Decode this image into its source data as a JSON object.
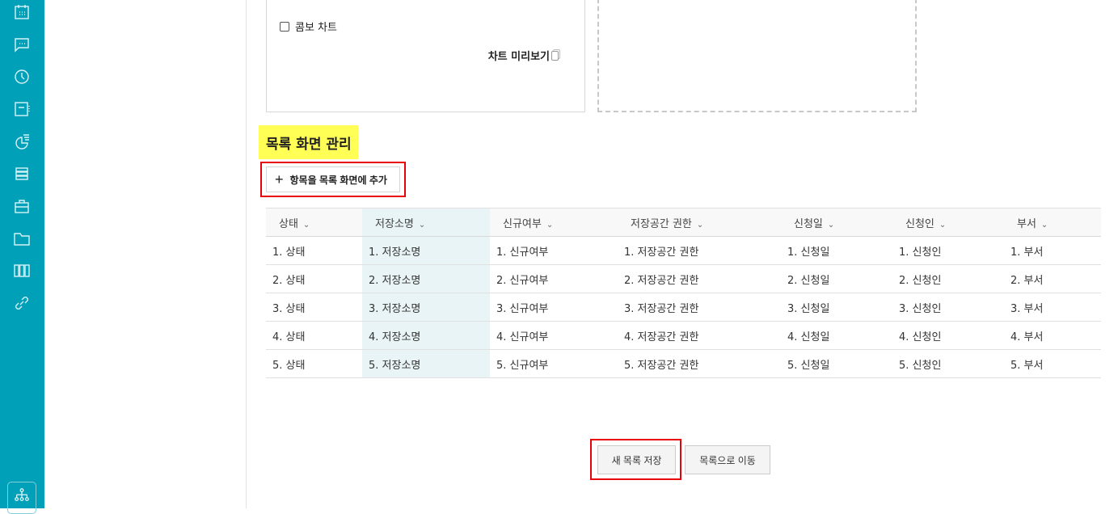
{
  "sidebar": {
    "icons": [
      "calendar-icon",
      "chat-icon",
      "clock-icon",
      "note-icon",
      "chart-icon",
      "list-icon",
      "briefcase-icon",
      "folder-icon",
      "columns-icon",
      "link-icon"
    ],
    "bottom_icon": "org-chart-icon",
    "color": "#00a0b8"
  },
  "chart_panel": {
    "combo_label": "콤보 차트",
    "combo_checked": false,
    "preview_label": "차트 미리보기"
  },
  "section": {
    "title": "목록 화면 관리",
    "add_button": "항목을 목록 화면에 추가"
  },
  "table": {
    "columns": [
      "상태",
      "저장소명",
      "신규여부",
      "저장공간 권한",
      "신청일",
      "신청인",
      "부서"
    ],
    "rows": [
      [
        "1. 상태",
        "1. 저장소명",
        "1. 신규여부",
        "1. 저장공간 권한",
        "1. 신청일",
        "1. 신청인",
        "1. 부서"
      ],
      [
        "2. 상태",
        "2. 저장소명",
        "2. 신규여부",
        "2. 저장공간 권한",
        "2. 신청일",
        "2. 신청인",
        "2. 부서"
      ],
      [
        "3. 상태",
        "3. 저장소명",
        "3. 신규여부",
        "3. 저장공간 권한",
        "3. 신청일",
        "3. 신청인",
        "3. 부서"
      ],
      [
        "4. 상태",
        "4. 저장소명",
        "4. 신규여부",
        "4. 저장공간 권한",
        "4. 신청일",
        "4. 신청인",
        "4. 부서"
      ],
      [
        "5. 상태",
        "5. 저장소명",
        "5. 신규여부",
        "5. 저장공간 권한",
        "5. 신청일",
        "5. 신청인",
        "5. 부서"
      ]
    ]
  },
  "footer": {
    "save_label": "새 목록 저장",
    "back_label": "목록으로 이동"
  },
  "highlight_color": "#ffff55",
  "annotation_color": "#e8000b"
}
